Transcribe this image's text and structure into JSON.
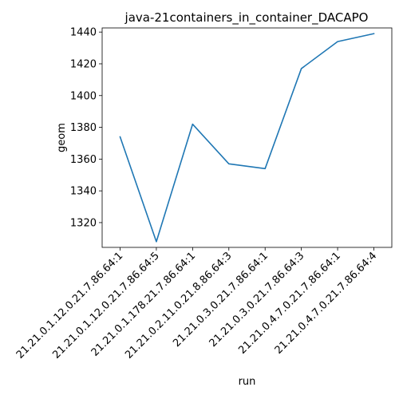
{
  "chart_data": {
    "type": "line",
    "title": "java-21containers_in_container_DACAPO",
    "xlabel": "run",
    "ylabel": "geom",
    "categories": [
      "21.21.0.1.12.0.21.7.86.64:1",
      "21.21.0.1.12.0.21.7.86.64:5",
      "21.21.0.1.178.21.7.86.64:1",
      "21.21.0.2.11.0.21.8.86.64:3",
      "21.21.0.3.0.21.7.86.64:1",
      "21.21.0.3.0.21.7.86.64:3",
      "21.21.0.4.7.0.21.7.86.64:1",
      "21.21.0.4.7.0.21.7.86.64:4"
    ],
    "series": [
      {
        "values": [
          1374,
          1308,
          1382,
          1357,
          1354,
          1417,
          1434,
          1439
        ],
        "color": "#1f77b4"
      }
    ],
    "ylim": [
      1304.4,
      1442.6
    ],
    "yticks": [
      1320,
      1340,
      1360,
      1380,
      1400,
      1420,
      1440
    ],
    "grid": false,
    "legend": "none"
  }
}
